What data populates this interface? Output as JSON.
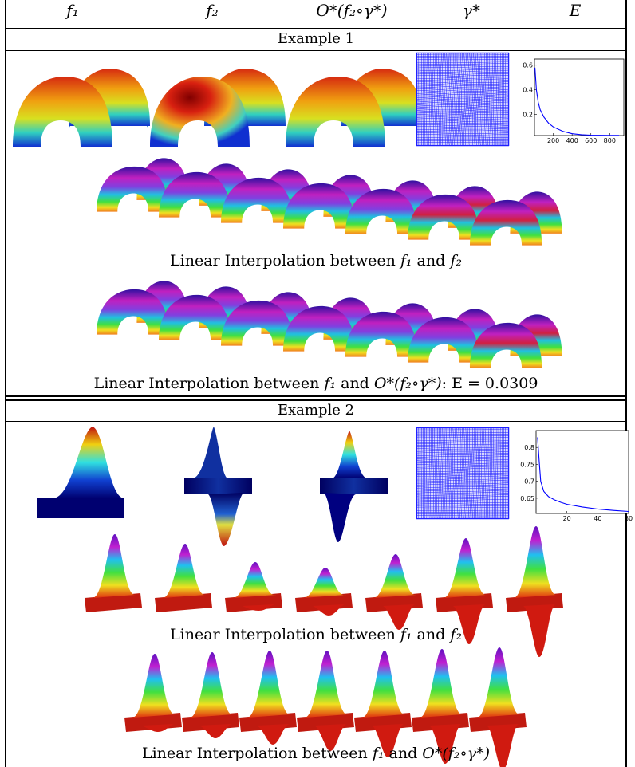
{
  "header": {
    "col1": "f₁",
    "col2": "f₂",
    "col3": "O*(f₂∘γ*)",
    "col4": "γ*",
    "col5": "E"
  },
  "example1": {
    "title": "Example 1",
    "caption_a_pre": "Linear Interpolation between ",
    "caption_a_f1": "f₁",
    "caption_a_and": " and ",
    "caption_a_f2": "f₂",
    "caption_b_pre": "Linear Interpolation between ",
    "caption_b_f1": "f₁",
    "caption_b_and": " and ",
    "caption_b_o": "O*(f₂∘γ*)",
    "caption_b_e": ": E = 0.0309"
  },
  "example2": {
    "title": "Example 2",
    "caption_a_pre": "Linear Interpolation between ",
    "caption_a_f1": "f₁",
    "caption_a_and": " and ",
    "caption_a_f2": "f₂",
    "caption_b_pre": "Linear Interpolation between ",
    "caption_b_f1": "f₁",
    "caption_b_and": " and ",
    "caption_b_o": "O*(f₂∘γ*)"
  },
  "chart_data": [
    {
      "type": "line",
      "x": [
        5,
        20,
        40,
        60,
        100,
        150,
        200,
        300,
        400,
        500,
        600,
        700,
        800,
        900
      ],
      "values": [
        0.58,
        0.4,
        0.3,
        0.24,
        0.18,
        0.13,
        0.1,
        0.065,
        0.045,
        0.037,
        0.033,
        0.032,
        0.031,
        0.031
      ],
      "xticks": [
        "200",
        "400",
        "600",
        "800"
      ],
      "yticks": [
        "0.2",
        "0.4",
        "0.6"
      ],
      "xlim": [
        0,
        950
      ],
      "ylim": [
        0.03,
        0.65
      ],
      "color": "#0000ff"
    },
    {
      "type": "line",
      "x": [
        1,
        2,
        3,
        5,
        8,
        12,
        16,
        20,
        30,
        40,
        50,
        60
      ],
      "values": [
        0.83,
        0.76,
        0.7,
        0.67,
        0.655,
        0.645,
        0.638,
        0.632,
        0.624,
        0.618,
        0.614,
        0.611
      ],
      "xticks": [
        "20",
        "40",
        "60"
      ],
      "yticks": [
        "0.65",
        "0.7",
        "0.75",
        "0.8"
      ],
      "xlim": [
        0,
        60
      ],
      "ylim": [
        0.605,
        0.85
      ],
      "color": "#0000ff"
    }
  ],
  "colors": {
    "grid_blue": "#1f1fff",
    "curve_blue": "#0000ff"
  }
}
